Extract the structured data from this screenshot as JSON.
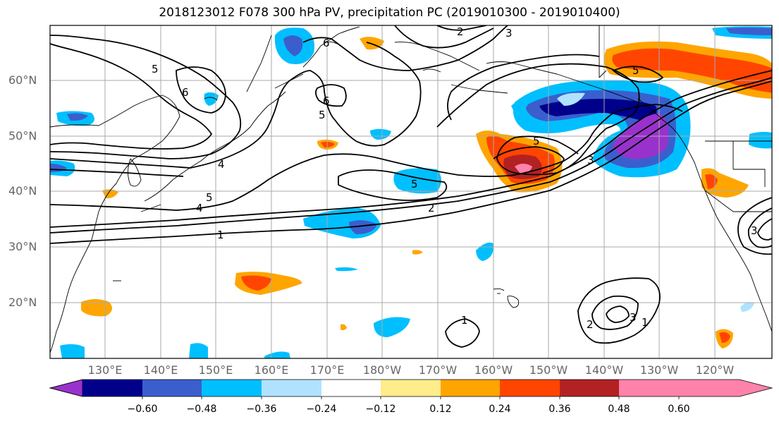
{
  "title": "2018123012 F078 300 hPa PV, precipitation PC (2019010300 - 2019010400)",
  "lat_labels": [
    "60°N",
    "50°N",
    "40°N",
    "30°N",
    "20°N"
  ],
  "lon_labels": [
    "130°E",
    "140°E",
    "150°E",
    "160°E",
    "170°E",
    "180°W",
    "170°W",
    "160°W",
    "150°W",
    "140°W",
    "130°W",
    "120°W"
  ],
  "colorbar": {
    "ticks": [
      "−0.60",
      "−0.48",
      "−0.36",
      "−0.24",
      "−0.12",
      "0.12",
      "0.24",
      "0.36",
      "0.48",
      "0.60"
    ],
    "colors": [
      "#9932cc",
      "#00008b",
      "#3a5fcd",
      "#00bfff",
      "#b0e2ff",
      "#ffffff",
      "#ffec8b",
      "#ffa500",
      "#ff4500",
      "#b22222",
      "#ff82ab"
    ]
  },
  "contour_labels": [
    {
      "id": "c1",
      "text": "2"
    },
    {
      "id": "c2",
      "text": "3"
    },
    {
      "id": "c3",
      "text": "5"
    },
    {
      "id": "c4",
      "text": "6"
    },
    {
      "id": "c5",
      "text": "6"
    },
    {
      "id": "c6",
      "text": "6"
    },
    {
      "id": "c7",
      "text": "5"
    },
    {
      "id": "c8",
      "text": "4"
    },
    {
      "id": "c9",
      "text": "5"
    },
    {
      "id": "c10",
      "text": "4"
    },
    {
      "id": "c11",
      "text": "1"
    },
    {
      "id": "c12",
      "text": "5"
    },
    {
      "id": "c13",
      "text": "2"
    },
    {
      "id": "c14",
      "text": "5"
    },
    {
      "id": "c15",
      "text": "5"
    },
    {
      "id": "c16",
      "text": "3"
    },
    {
      "id": "c17",
      "text": "1"
    },
    {
      "id": "c18",
      "text": "2"
    },
    {
      "id": "c19",
      "text": "3"
    },
    {
      "id": "c20",
      "text": "1"
    },
    {
      "id": "c21",
      "text": "3"
    }
  ]
}
